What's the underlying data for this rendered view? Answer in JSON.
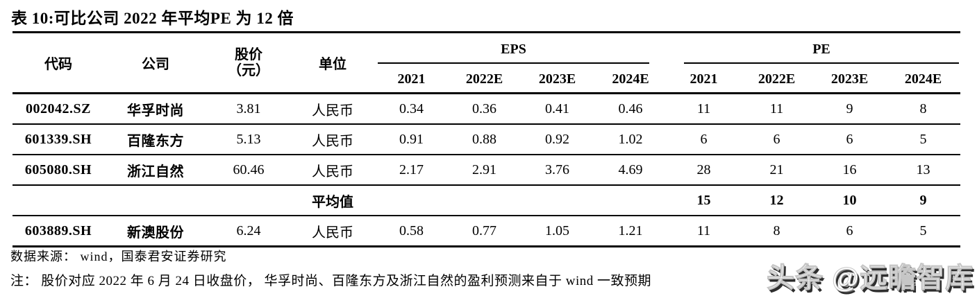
{
  "title": "表 10:可比公司 2022 年平均PE 为 12 倍",
  "table": {
    "headers": {
      "code": "代码",
      "company": "公司",
      "price_line1": "股价",
      "price_line2": "（元）",
      "unit": "单位",
      "eps_group": "EPS",
      "pe_group": "PE",
      "eps_years": [
        "2021",
        "2022E",
        "2023E",
        "2024E"
      ],
      "pe_years": [
        "2021",
        "2022E",
        "2023E",
        "2024E"
      ]
    },
    "rows": [
      {
        "code": "002042.SZ",
        "company": "华孚时尚",
        "price": "3.81",
        "unit": "人民币",
        "eps": [
          "0.34",
          "0.36",
          "0.41",
          "0.46"
        ],
        "pe": [
          "11",
          "11",
          "9",
          "8"
        ],
        "bold": false
      },
      {
        "code": "601339.SH",
        "company": "百隆东方",
        "price": "5.13",
        "unit": "人民币",
        "eps": [
          "0.91",
          "0.88",
          "0.92",
          "1.02"
        ],
        "pe": [
          "6",
          "6",
          "6",
          "5"
        ],
        "bold": false
      },
      {
        "code": "605080.SH",
        "company": "浙江自然",
        "price": "60.46",
        "unit": "人民币",
        "eps": [
          "2.17",
          "2.91",
          "3.76",
          "4.69"
        ],
        "pe": [
          "28",
          "21",
          "16",
          "13"
        ],
        "bold": false
      },
      {
        "code": "",
        "company": "",
        "price": "",
        "unit": "平均值",
        "eps": [
          "",
          "",
          "",
          ""
        ],
        "pe": [
          "15",
          "12",
          "10",
          "9"
        ],
        "bold": true
      },
      {
        "code": "603889.SH",
        "company": "新澳股份",
        "price": "6.24",
        "unit": "人民币",
        "eps": [
          "0.58",
          "0.77",
          "1.05",
          "1.21"
        ],
        "pe": [
          "11",
          "8",
          "6",
          "5"
        ],
        "bold": false
      }
    ]
  },
  "footer": {
    "source": "数据来源： wind，国泰君安证券研究",
    "note": "注： 股价对应 2022 年 6 月 24 日收盘价， 华孚时尚、百隆东方及浙江自然的盈利预测来自于 wind 一致预期"
  },
  "watermark": "头条 @远瞻智库",
  "colors": {
    "text": "#000000",
    "rule": "#000000",
    "background": "#ffffff",
    "watermark_fill": "#ffffff",
    "watermark_shadow": "#2e2e2e"
  }
}
